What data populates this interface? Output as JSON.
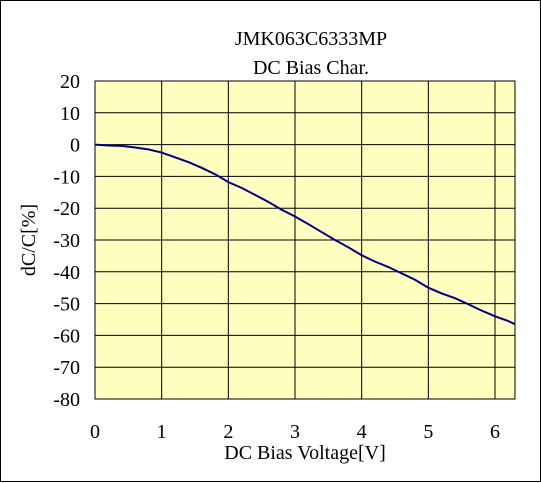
{
  "chart_data": {
    "type": "line",
    "title": "JMK063C6333MP",
    "subtitle": "DC Bias Char.",
    "xlabel": "DC Bias Voltage[V]",
    "ylabel": "dC/C[%]",
    "xlim": [
      0,
      6.3
    ],
    "ylim": [
      -80,
      20
    ],
    "xticks": [
      0,
      1,
      2,
      3,
      4,
      5,
      6
    ],
    "yticks": [
      20,
      10,
      0,
      -10,
      -20,
      -30,
      -40,
      -50,
      -60,
      -70,
      -80
    ],
    "xtick_labels": [
      "0",
      "1",
      "2",
      "3",
      "4",
      "5",
      "6"
    ],
    "ytick_labels": [
      "20",
      "10",
      "0",
      "-10",
      "-20",
      "-30",
      "-40",
      "-50",
      "-60",
      "-70",
      "-80"
    ],
    "grid": true,
    "plot_background": "#FFFFC0",
    "line_color": "#000080",
    "series": [
      {
        "x": [
          0,
          0.2,
          0.4,
          0.6,
          0.8,
          1.0,
          1.2,
          1.4,
          1.6,
          1.8,
          2.0,
          2.2,
          2.4,
          2.6,
          2.8,
          3.0,
          3.2,
          3.4,
          3.6,
          3.8,
          4.0,
          4.2,
          4.4,
          4.6,
          4.8,
          5.0,
          5.2,
          5.4,
          5.6,
          5.8,
          6.0,
          6.2,
          6.3
        ],
        "values": [
          0,
          -0.3,
          -0.4,
          -0.9,
          -1.5,
          -2.5,
          -4.0,
          -5.5,
          -7.3,
          -9.3,
          -11.8,
          -13.6,
          -15.8,
          -18.0,
          -20.5,
          -22.6,
          -25.0,
          -27.5,
          -30.0,
          -32.3,
          -34.8,
          -36.8,
          -38.5,
          -40.5,
          -42.5,
          -45.0,
          -46.8,
          -48.3,
          -50.2,
          -52.2,
          -54.0,
          -55.5,
          -56.5
        ]
      }
    ]
  }
}
